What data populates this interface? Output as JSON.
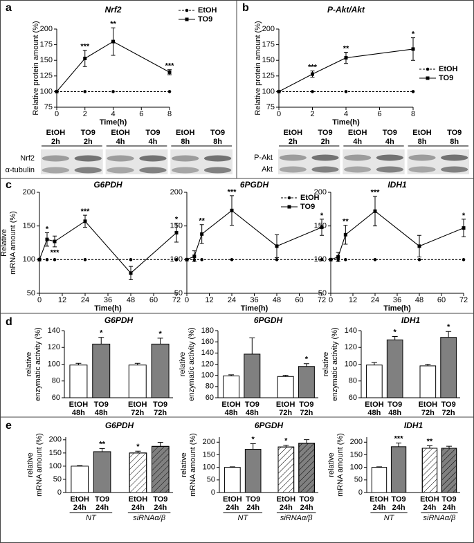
{
  "panels": [
    "a",
    "b",
    "c",
    "d",
    "e"
  ],
  "blots": [
    {
      "lanes": [
        [
          "EtOH",
          "2h"
        ],
        [
          "TO9",
          "2h"
        ],
        [
          "EtOH",
          "4h"
        ],
        [
          "TO9",
          "4h"
        ],
        [
          "EtOH",
          "8h"
        ],
        [
          "TO9",
          "8h"
        ]
      ],
      "rows": [
        "Nrf2",
        "α-tubulin"
      ]
    },
    {
      "lanes": [
        [
          "EtOH",
          "2h"
        ],
        [
          "TO9",
          "2h"
        ],
        [
          "EtOH",
          "4h"
        ],
        [
          "TO9",
          "4h"
        ],
        [
          "EtOH",
          "8h"
        ],
        [
          "TO9",
          "8h"
        ]
      ],
      "rows": [
        "P-Akt",
        "Akt"
      ]
    }
  ],
  "chart_data": [
    {
      "type": "line",
      "title": "Nrf2",
      "ylabel": [
        "Relative protein amount (%)"
      ],
      "xlabel": "Time(h)",
      "x": [
        0,
        2,
        4,
        8
      ],
      "xlim": [
        0,
        8
      ],
      "xticks": [
        0,
        2,
        4,
        6,
        8
      ],
      "ylim": [
        75,
        200
      ],
      "yticks": [
        75,
        100,
        125,
        150,
        175,
        200
      ],
      "legend": "upper right",
      "series": [
        {
          "name": "EtOH",
          "color": "#000000",
          "line_style": "dashed",
          "marker": "circle",
          "values": [
            100,
            100,
            100,
            100
          ]
        },
        {
          "name": "TO9",
          "color": "#000000",
          "line_style": "solid",
          "marker": "square",
          "values": [
            100,
            153,
            180,
            131
          ],
          "errors": [
            0,
            13,
            22,
            4
          ],
          "significance": [
            null,
            "***",
            "**",
            "***"
          ]
        }
      ]
    },
    {
      "type": "line",
      "title": "P-Akt/Akt",
      "ylabel": [
        "Relative protein amount (%)"
      ],
      "xlabel": "Time(h)",
      "x": [
        0,
        2,
        4,
        8
      ],
      "xlim": [
        0,
        8
      ],
      "xticks": [
        0,
        2,
        4,
        6,
        8
      ],
      "ylim": [
        75,
        200
      ],
      "yticks": [
        75,
        100,
        125,
        150,
        175,
        200
      ],
      "legend": "center right",
      "series": [
        {
          "name": "EtOH",
          "color": "#000000",
          "line_style": "dashed",
          "marker": "circle",
          "values": [
            100,
            100,
            100,
            100
          ]
        },
        {
          "name": "TO9",
          "color": "#000000",
          "line_style": "solid",
          "marker": "square",
          "values": [
            100,
            128,
            154,
            168
          ],
          "errors": [
            0,
            5,
            9,
            18
          ],
          "significance": [
            null,
            "***",
            "**",
            "*"
          ]
        }
      ]
    },
    {
      "type": "line",
      "title": "G6PDH",
      "ylabel": [
        "Relative",
        "mRNA amount (%)"
      ],
      "xlabel": "Time(h)",
      "x": [
        0,
        4,
        8,
        24,
        48,
        72
      ],
      "xlim": [
        0,
        72
      ],
      "xticks": [
        0,
        12,
        24,
        36,
        48,
        60,
        72
      ],
      "ylim": [
        50,
        200
      ],
      "yticks": [
        50,
        100,
        150,
        200
      ],
      "series": [
        {
          "name": "EtOH",
          "color": "#000000",
          "line_style": "dashed",
          "marker": "circle",
          "values": [
            100,
            100,
            100,
            100,
            100,
            100
          ]
        },
        {
          "name": "TO9",
          "color": "#000000",
          "line_style": "solid",
          "marker": "square",
          "values": [
            100,
            130,
            127,
            157,
            80,
            140
          ],
          "errors": [
            0,
            10,
            8,
            9,
            10,
            14
          ],
          "significance": [
            null,
            "*",
            "***",
            "***",
            null,
            "*"
          ]
        }
      ]
    },
    {
      "type": "line",
      "title": "6PGDH",
      "xlabel": "Time(h)",
      "x": [
        0,
        4,
        8,
        24,
        48,
        72
      ],
      "xlim": [
        0,
        72
      ],
      "xticks": [
        0,
        12,
        24,
        36,
        48,
        60,
        72
      ],
      "ylim": [
        50,
        200
      ],
      "yticks": [
        50,
        100,
        150,
        200
      ],
      "legend": "upper right",
      "series": [
        {
          "name": "EtOH",
          "color": "#000000",
          "line_style": "dashed",
          "marker": "circle",
          "values": [
            100,
            100,
            100,
            100,
            100,
            100
          ]
        },
        {
          "name": "TO9",
          "color": "#000000",
          "line_style": "solid",
          "marker": "square",
          "values": [
            100,
            105,
            138,
            173,
            120,
            148
          ],
          "errors": [
            0,
            8,
            14,
            22,
            17,
            12
          ],
          "significance": [
            null,
            null,
            "**",
            "***",
            null,
            "*"
          ]
        }
      ]
    },
    {
      "type": "line",
      "title": "IDH1",
      "xlabel": "Time(h)",
      "x": [
        0,
        4,
        8,
        24,
        48,
        72
      ],
      "xlim": [
        0,
        72
      ],
      "xticks": [
        0,
        12,
        24,
        36,
        48,
        60,
        72
      ],
      "ylim": [
        50,
        200
      ],
      "yticks": [
        50,
        100,
        150,
        200
      ],
      "series": [
        {
          "name": "EtOH",
          "color": "#000000",
          "line_style": "dashed",
          "marker": "circle",
          "values": [
            100,
            100,
            100,
            100,
            100,
            100
          ]
        },
        {
          "name": "TO9",
          "color": "#000000",
          "line_style": "solid",
          "marker": "square",
          "values": [
            100,
            104,
            137,
            172,
            120,
            147
          ],
          "errors": [
            0,
            7,
            14,
            22,
            16,
            13
          ],
          "significance": [
            null,
            null,
            "**",
            "***",
            null,
            "*"
          ]
        }
      ]
    },
    {
      "type": "bar",
      "title": "G6PDH",
      "ylabel": [
        "relative",
        "enzymatic activity (%)"
      ],
      "categories": [
        [
          "EtOH",
          "48h"
        ],
        [
          "TO9",
          "48h"
        ],
        [
          "EtOH",
          "72h"
        ],
        [
          "TO9",
          "72h"
        ]
      ],
      "values": [
        99,
        124,
        99,
        124
      ],
      "errors": [
        2,
        8,
        2,
        7
      ],
      "significance": [
        null,
        "*",
        null,
        "*"
      ],
      "colors": [
        "#ffffff",
        "#808080",
        "#ffffff",
        "#808080"
      ],
      "hatch": [
        false,
        false,
        false,
        false
      ],
      "ylim": [
        60,
        140
      ],
      "yticks": [
        60,
        80,
        100,
        120,
        140
      ]
    },
    {
      "type": "bar",
      "title": "6PGDH",
      "ylabel": [
        "relative",
        "enzymatic activity (%)"
      ],
      "categories": [
        [
          "EtOH",
          "48h"
        ],
        [
          "TO9",
          "48h"
        ],
        [
          "EtOH",
          "72h"
        ],
        [
          "TO9",
          "72h"
        ]
      ],
      "values": [
        99,
        138,
        98,
        116
      ],
      "errors": [
        2,
        29,
        2,
        5
      ],
      "significance": [
        null,
        null,
        null,
        "*"
      ],
      "colors": [
        "#ffffff",
        "#808080",
        "#ffffff",
        "#808080"
      ],
      "hatch": [
        false,
        false,
        false,
        false
      ],
      "ylim": [
        60,
        180
      ],
      "yticks": [
        60,
        80,
        100,
        120,
        140,
        160,
        180
      ]
    },
    {
      "type": "bar",
      "title": "IDH1",
      "ylabel": [
        "relative",
        "enzymatic activity (%)"
      ],
      "categories": [
        [
          "EtOH",
          "48h"
        ],
        [
          "TO9",
          "48h"
        ],
        [
          "EtOH",
          "72h"
        ],
        [
          "TO9",
          "72h"
        ]
      ],
      "values": [
        99,
        129,
        98,
        132
      ],
      "errors": [
        3,
        4,
        2,
        7
      ],
      "significance": [
        null,
        "*",
        null,
        "*"
      ],
      "colors": [
        "#ffffff",
        "#808080",
        "#ffffff",
        "#808080"
      ],
      "hatch": [
        false,
        false,
        false,
        false
      ],
      "ylim": [
        60,
        140
      ],
      "yticks": [
        60,
        80,
        100,
        120,
        140
      ]
    },
    {
      "type": "bar",
      "title": "G6PDH",
      "ylabel": [
        "relative",
        "mRNA amount (%)"
      ],
      "categories": [
        [
          "EtOH",
          "24h"
        ],
        [
          "TO9",
          "24h"
        ],
        [
          "EtOH",
          "24h"
        ],
        [
          "TO9",
          "24h"
        ]
      ],
      "group_labels": [
        "NT",
        "siRNAα/β"
      ],
      "values": [
        100,
        155,
        150,
        175
      ],
      "errors": [
        2,
        12,
        7,
        15
      ],
      "significance": [
        null,
        "**",
        "*",
        null
      ],
      "colors": [
        "#ffffff",
        "#808080",
        "#ffffff",
        "#808080"
      ],
      "hatch": [
        false,
        false,
        true,
        true
      ],
      "ylim": [
        0,
        210
      ],
      "yticks": [
        0,
        50,
        100,
        150,
        200
      ]
    },
    {
      "type": "bar",
      "title": "6PGDH",
      "ylabel": [
        "relative",
        "mRNA amount (%)"
      ],
      "categories": [
        [
          "EtOH",
          "24h"
        ],
        [
          "TO9",
          "24h"
        ],
        [
          "EtOH",
          "24h"
        ],
        [
          "TO9",
          "24h"
        ]
      ],
      "group_labels": [
        "NT",
        "siRNAα/β"
      ],
      "values": [
        100,
        172,
        181,
        196
      ],
      "errors": [
        2,
        22,
        7,
        14
      ],
      "significance": [
        null,
        "*",
        "*",
        null
      ],
      "colors": [
        "#ffffff",
        "#808080",
        "#ffffff",
        "#808080"
      ],
      "hatch": [
        false,
        false,
        true,
        true
      ],
      "ylim": [
        0,
        220
      ],
      "yticks": [
        0,
        50,
        100,
        150,
        200
      ]
    },
    {
      "type": "bar",
      "title": "IDH1",
      "ylabel": [
        "relative",
        "mRNA amount (%)"
      ],
      "categories": [
        [
          "EtOH",
          "24h"
        ],
        [
          "TO9",
          "24h"
        ],
        [
          "EtOH",
          "24h"
        ],
        [
          "TO9",
          "24h"
        ]
      ],
      "group_labels": [
        "NT",
        "siRNAα/β"
      ],
      "values": [
        100,
        182,
        176,
        176
      ],
      "errors": [
        2,
        15,
        10,
        8
      ],
      "significance": [
        null,
        "***",
        "**",
        null
      ],
      "colors": [
        "#ffffff",
        "#808080",
        "#ffffff",
        "#808080"
      ],
      "hatch": [
        false,
        false,
        true,
        true
      ],
      "ylim": [
        0,
        220
      ],
      "yticks": [
        0,
        50,
        100,
        150,
        200
      ]
    }
  ]
}
